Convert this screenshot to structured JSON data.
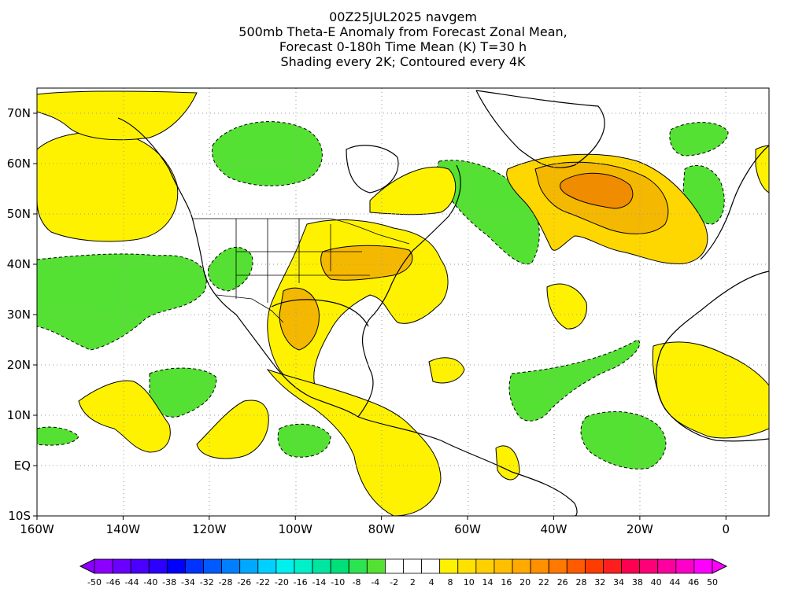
{
  "title_lines": [
    "00Z25JUL2025 navgem",
    "500mb Theta-E Anomaly from Forecast Zonal Mean,",
    "Forecast 0-180h Time Mean (K) T=30 h",
    "Shading every 2K; Contoured every 4K"
  ],
  "map": {
    "region": "North Atlantic / Americas",
    "lon_range": [
      -160,
      10
    ],
    "lat_range": [
      -10,
      75
    ],
    "lat_ticks": [
      {
        "value": 70,
        "label": "70N"
      },
      {
        "value": 60,
        "label": "60N"
      },
      {
        "value": 50,
        "label": "50N"
      },
      {
        "value": 40,
        "label": "40N"
      },
      {
        "value": 30,
        "label": "30N"
      },
      {
        "value": 20,
        "label": "20N"
      },
      {
        "value": 10,
        "label": "10N"
      },
      {
        "value": 0,
        "label": "EQ"
      },
      {
        "value": -10,
        "label": "10S"
      }
    ],
    "lon_ticks": [
      {
        "value": -160,
        "label": "160W"
      },
      {
        "value": -140,
        "label": "140W"
      },
      {
        "value": -120,
        "label": "120W"
      },
      {
        "value": -100,
        "label": "100W"
      },
      {
        "value": -80,
        "label": "80W"
      },
      {
        "value": -60,
        "label": "60W"
      },
      {
        "value": -40,
        "label": "40W"
      },
      {
        "value": -20,
        "label": "20W"
      },
      {
        "value": 0,
        "label": "0"
      }
    ],
    "grid": "dotted",
    "colors": {
      "green": "#55e133",
      "yellow": "#fff200",
      "light_orange": "#ffd700",
      "orange": "#f5b800",
      "deep_orange": "#f08c00",
      "coast": "#000000"
    }
  },
  "colorbar": {
    "labels": [
      "-50",
      "-46",
      "-44",
      "-40",
      "-38",
      "-34",
      "-32",
      "-28",
      "-26",
      "-22",
      "-20",
      "-16",
      "-14",
      "-10",
      "-8",
      "-4",
      "-2",
      "2",
      "4",
      "8",
      "10",
      "14",
      "16",
      "20",
      "22",
      "26",
      "28",
      "32",
      "34",
      "38",
      "40",
      "44",
      "46",
      "50"
    ],
    "colors": [
      "#8c00ff",
      "#6a00ff",
      "#4b00ff",
      "#2b00ff",
      "#0000ff",
      "#0033ff",
      "#005aff",
      "#0080ff",
      "#00a8ff",
      "#00d0ff",
      "#00f0f0",
      "#00f0c8",
      "#00e6a0",
      "#00e078",
      "#2ce450",
      "#55e133",
      "#ffffff",
      "#ffffff",
      "#ffffff",
      "#fff200",
      "#ffe100",
      "#ffd000",
      "#ffbf00",
      "#ffaa00",
      "#ff9100",
      "#ff7800",
      "#ff5a00",
      "#ff3c00",
      "#ff1e1e",
      "#ff0050",
      "#ff0078",
      "#ff00a0",
      "#ff00c8",
      "#ff00ff"
    ]
  }
}
